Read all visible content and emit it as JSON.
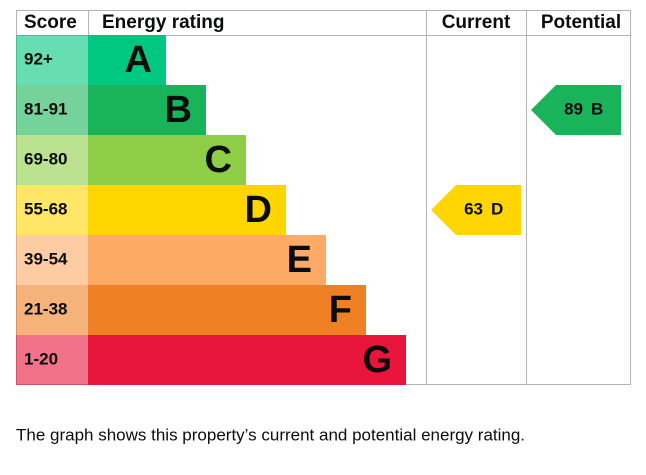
{
  "headers": [
    "Score",
    "Energy rating",
    "Current",
    "Potential"
  ],
  "bands": [
    {
      "score": "92+",
      "letter": "A",
      "color": "#00c781"
    },
    {
      "score": "81-91",
      "letter": "B",
      "color": "#19b459"
    },
    {
      "score": "69-80",
      "letter": "C",
      "color": "#8dce46"
    },
    {
      "score": "55-68",
      "letter": "D",
      "color": "#ffd500"
    },
    {
      "score": "39-54",
      "letter": "E",
      "color": "#fcaa65"
    },
    {
      "score": "21-38",
      "letter": "F",
      "color": "#ef8023"
    },
    {
      "score": "1-20",
      "letter": "G",
      "color": "#e9153b"
    }
  ],
  "current": {
    "value": 63,
    "letter": "D"
  },
  "potential": {
    "value": 89,
    "letter": "B"
  },
  "caption": "The graph shows this property’s current and potential energy rating."
}
